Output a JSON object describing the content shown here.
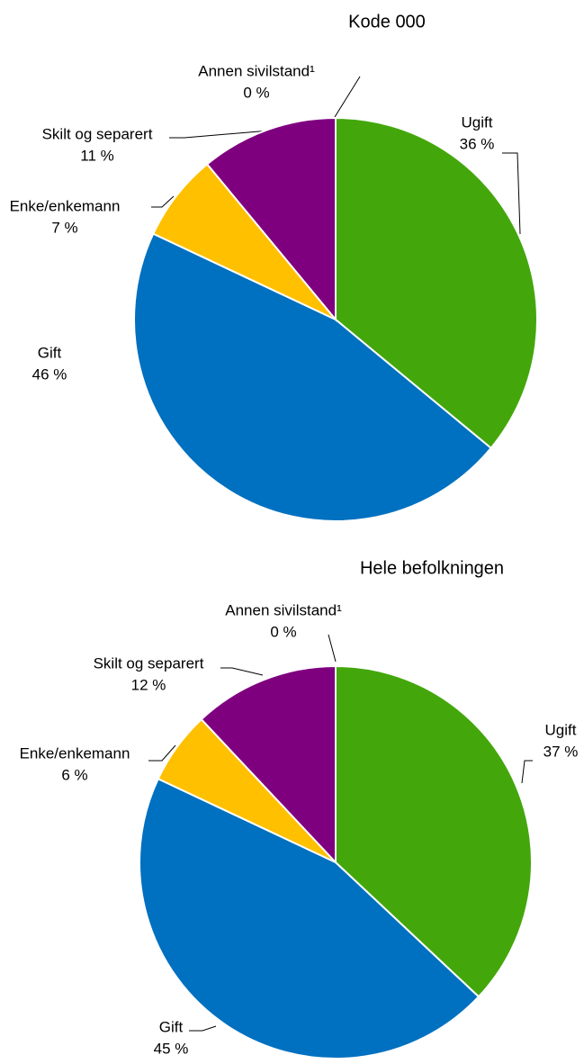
{
  "chart_data": [
    {
      "type": "pie",
      "title": "Kode 000",
      "categories": [
        "Ugift",
        "Gift",
        "Enke/enkemann",
        "Skilt og separert",
        "Annen sivilstand¹"
      ],
      "values": [
        36,
        46,
        7,
        11,
        0
      ],
      "value_labels": [
        "36 %",
        "46 %",
        "7 %",
        "11 %",
        "0 %"
      ],
      "colors": [
        "#43a70b",
        "#0070c0",
        "#ffc000",
        "#7f007f",
        "#a0a0a0"
      ]
    },
    {
      "type": "pie",
      "title": "Hele befolkningen",
      "categories": [
        "Ugift",
        "Gift",
        "Enke/enkemann",
        "Skilt og separert",
        "Annen sivilstand¹"
      ],
      "values": [
        37,
        45,
        6,
        12,
        0
      ],
      "value_labels": [
        "37 %",
        "45 %",
        "6 %",
        "12 %",
        "0 %"
      ],
      "colors": [
        "#43a70b",
        "#0070c0",
        "#ffc000",
        "#7f007f",
        "#a0a0a0"
      ]
    }
  ]
}
